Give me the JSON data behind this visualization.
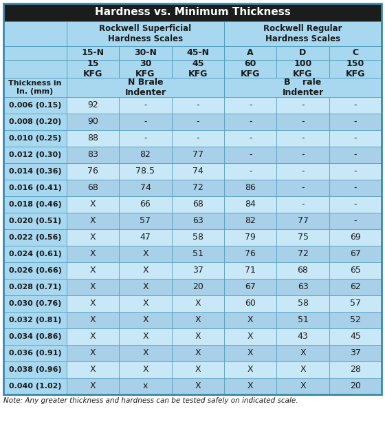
{
  "title": "Hardness vs. Minimum Thickness",
  "title_bg": "#1c1c1c",
  "title_color": "#ffffff",
  "header_bg": "#a8d8f0",
  "row_bg_light": "#c8e8f8",
  "row_bg_dark": "#a8d0e8",
  "col_groups": [
    {
      "label": "Rockwell Superficial\nHardness Scales",
      "span": 3
    },
    {
      "label": "Rockwell Regular\nHardness Scales",
      "span": 3
    }
  ],
  "sub_headers": [
    "15-N",
    "30-N",
    "45-N",
    "A",
    "D",
    "C"
  ],
  "kfg_headers": [
    "15\nKFG",
    "30\nKFG",
    "45\nKFG",
    "60\nKFG",
    "100\nKFG",
    "150\nKFG"
  ],
  "indenter_row_left": "N Brale\nIndenter",
  "indenter_row_right": "B    rale\nIndenter",
  "thickness_col_header": "Thickness in\nIn. (mm)",
  "rows": [
    [
      "0.006 (0.15)",
      "92",
      "-",
      "-",
      "-",
      "-",
      "-"
    ],
    [
      "0.008 (0.20)",
      "90",
      "-",
      "-",
      "-",
      "-",
      "-"
    ],
    [
      "0.010 (0.25)",
      "88",
      "-",
      "-",
      "-",
      "-",
      "-"
    ],
    [
      "0.012 (0.30)",
      "83",
      "82",
      "77",
      "-",
      "-",
      "-"
    ],
    [
      "0.014 (0.36)",
      "76",
      "78.5",
      "74",
      "-",
      "-",
      "-"
    ],
    [
      "0.016 (0.41)",
      "68",
      "74",
      "72",
      "86",
      "-",
      "-"
    ],
    [
      "0.018 (0.46)",
      "X",
      "66",
      "68",
      "84",
      "-",
      "-"
    ],
    [
      "0.020 (0.51)",
      "X",
      "57",
      "63",
      "82",
      "77",
      "-"
    ],
    [
      "0.022 (0.56)",
      "X",
      "47",
      "58",
      "79",
      "75",
      "69"
    ],
    [
      "0.024 (0.61)",
      "X",
      "X",
      "51",
      "76",
      "72",
      "67"
    ],
    [
      "0.026 (0.66)",
      "X",
      "X",
      "37",
      "71",
      "68",
      "65"
    ],
    [
      "0.028 (0.71)",
      "X",
      "X",
      "20",
      "67",
      "63",
      "62"
    ],
    [
      "0.030 (0.76)",
      "X",
      "X",
      "X",
      "60",
      "58",
      "57"
    ],
    [
      "0.032 (0.81)",
      "X",
      "X",
      "X",
      "X",
      "51",
      "52"
    ],
    [
      "0.034 (0.86)",
      "X",
      "X",
      "X",
      "X",
      "43",
      "45"
    ],
    [
      "0.036 (0.91)",
      "X",
      "X",
      "X",
      "X",
      "X",
      "37"
    ],
    [
      "0.038 (0.96)",
      "X",
      "X",
      "X",
      "X",
      "X",
      "28"
    ],
    [
      "0.040 (1.02)",
      "X",
      "x",
      "X",
      "X",
      "X",
      "20"
    ]
  ],
  "note": "Note: Any greater thickness and hardness can be tested safely on indicated scale.",
  "border_color": "#4a9aba",
  "divider_color": "#3a8aaa"
}
